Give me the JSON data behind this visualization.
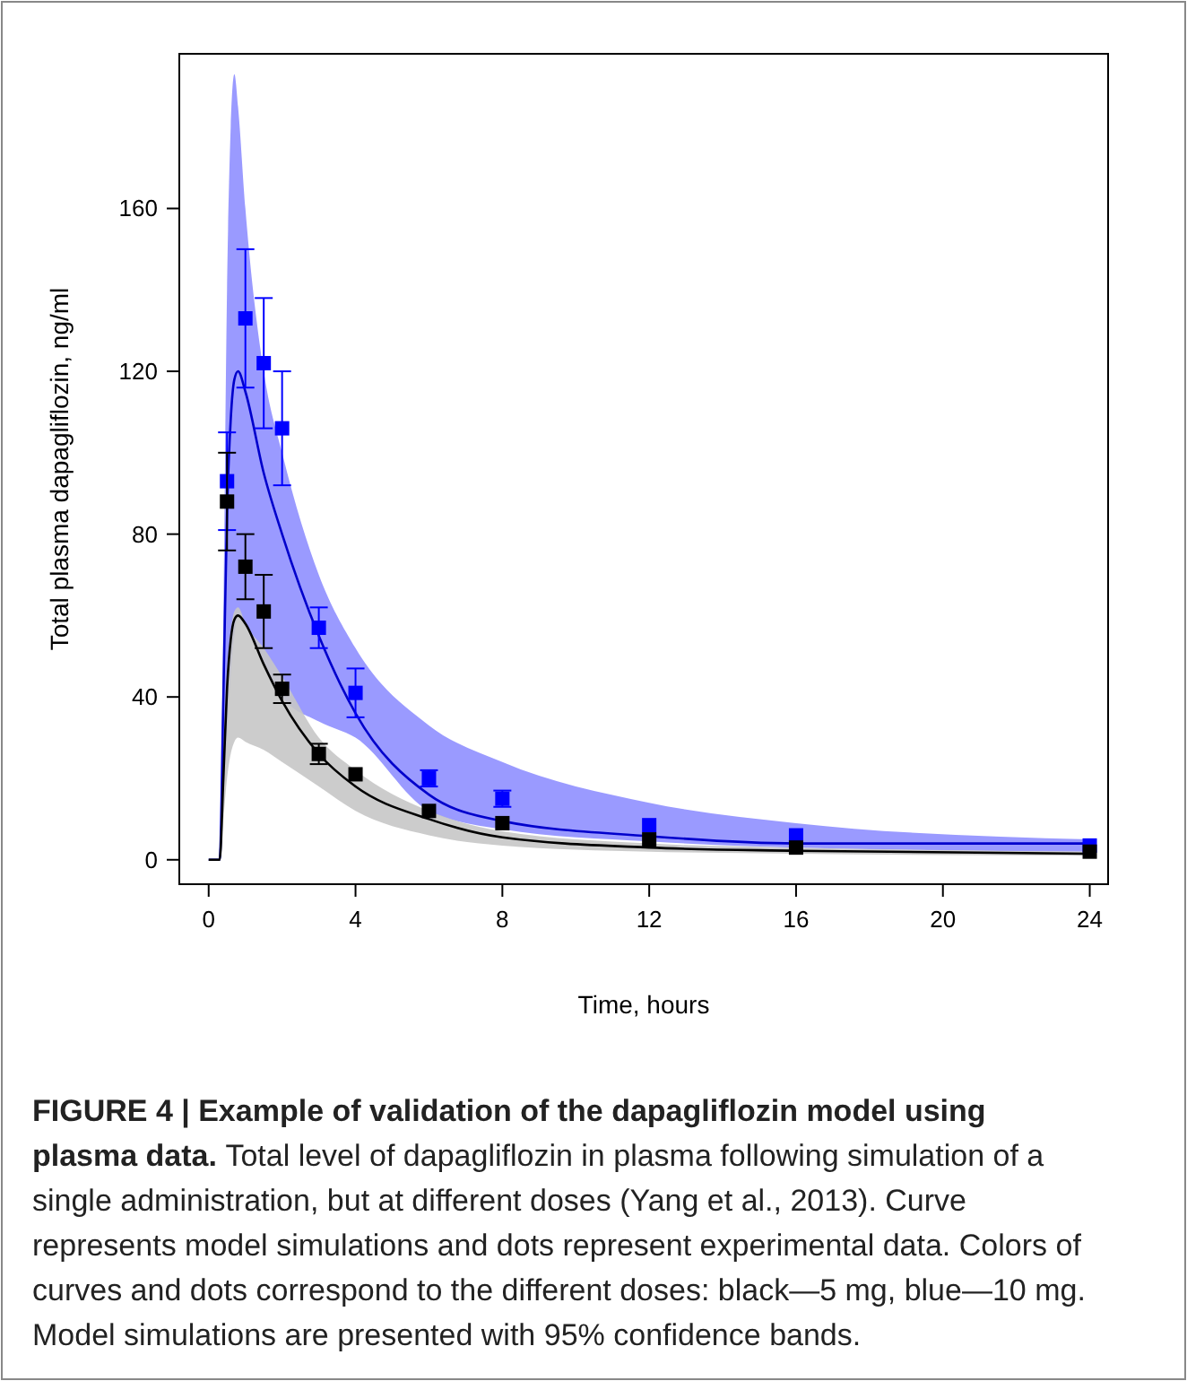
{
  "chart_data": {
    "type": "line",
    "title": "FIGURE 4 | Example of validation of the dapagliflozin model using plasma data.",
    "annotations": [
      "Total level of dapagliflozin in plasma following simulation of a single administration, but at different doses (Yang et al., 2013). Curve represents model simulations and dots represent experimental data. Colors of curves and dots correspond to the different doses: black—5 mg, blue—10 mg. Model simulations are presented with 95% confidence bands."
    ],
    "xlabel": "Time, hours",
    "ylabel": "Total plasma dapagliflozin, ng/ml",
    "xlim": [
      -0.8,
      24.5
    ],
    "ylim": [
      -6,
      198
    ],
    "xticks": [
      0,
      4,
      8,
      12,
      16,
      20,
      24
    ],
    "yticks": [
      0,
      40,
      80,
      120,
      160
    ],
    "grid": false,
    "series": [
      {
        "color": "#0000cc",
        "marker": "none",
        "line_style": "solid",
        "x": [
          0,
          0.3,
          0.4,
          0.5,
          0.6,
          0.7,
          0.8,
          1,
          1.5,
          2,
          3,
          4,
          6,
          8,
          12,
          16,
          24
        ],
        "values": [
          0,
          0,
          40,
          85,
          108,
          118,
          120,
          115,
          95,
          80,
          55,
          36,
          16,
          9.5,
          5.8,
          4,
          4
        ],
        "lower": [
          0,
          0,
          15,
          30,
          45,
          55,
          60,
          58,
          48,
          40,
          34,
          30,
          12,
          7.5,
          4.5,
          3,
          2
        ],
        "upper": [
          0,
          0,
          60,
          140,
          180,
          193,
          185,
          160,
          120,
          100,
          70,
          52,
          33,
          24,
          14,
          9,
          5
        ]
      },
      {
        "color": "#000000",
        "marker": "none",
        "line_style": "solid",
        "x": [
          0,
          0.3,
          0.4,
          0.5,
          0.6,
          0.7,
          0.8,
          1,
          1.5,
          2,
          3,
          4,
          6,
          8,
          12,
          16,
          24
        ],
        "values": [
          0,
          0,
          20,
          42,
          54,
          59,
          60,
          58,
          48,
          39,
          26,
          18,
          10,
          5.5,
          3,
          2.2,
          1.5
        ],
        "lower": [
          0,
          0,
          10,
          20,
          26,
          29,
          30,
          29,
          27,
          24,
          18,
          12,
          6,
          3.5,
          2,
          1.5,
          1
        ],
        "upper": [
          0,
          0,
          25,
          45,
          56,
          61,
          62,
          58,
          52,
          45,
          30,
          22,
          12,
          7,
          4,
          3,
          2
        ]
      },
      {
        "type": "scatter",
        "color": "#0000ff",
        "marker": "square",
        "x": [
          0.5,
          1,
          1.5,
          2,
          3,
          4,
          6,
          8,
          12,
          16,
          24
        ],
        "values": [
          93,
          133,
          122,
          106,
          57,
          41,
          20,
          15,
          8.5,
          6,
          3.5
        ],
        "errors": [
          12,
          17,
          16,
          14,
          5,
          6,
          2,
          2,
          null,
          null,
          null
        ]
      },
      {
        "type": "scatter",
        "color": "#000000",
        "marker": "square",
        "x": [
          0.5,
          1,
          1.5,
          2,
          3,
          4,
          6,
          8,
          12,
          16,
          24
        ],
        "values": [
          88,
          72,
          61,
          42,
          26,
          21,
          12,
          9,
          5,
          3,
          2
        ],
        "errors": [
          12,
          8,
          9,
          3.5,
          2.5,
          null,
          null,
          null,
          null,
          null,
          null
        ]
      }
    ]
  }
}
